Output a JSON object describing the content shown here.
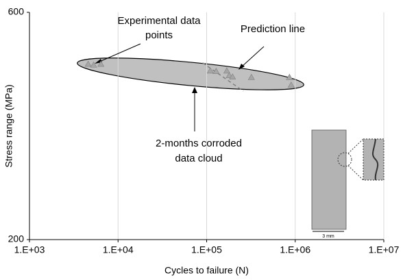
{
  "chart_data": {
    "type": "scatter",
    "x_label": "Cycles to failure (N)",
    "y_label": "Stress range (MPa)",
    "xscale": "log",
    "yscale": "log",
    "xlim": [
      1000,
      10000000
    ],
    "ylim": [
      200,
      600
    ],
    "xticks": [
      {
        "value": 1000,
        "label": "1.E+03"
      },
      {
        "value": 10000,
        "label": "1.E+04"
      },
      {
        "value": 100000,
        "label": "1.E+05"
      },
      {
        "value": 1000000,
        "label": "1.E+06"
      },
      {
        "value": 10000000,
        "label": "1.E+07"
      }
    ],
    "yticks": [
      200,
      600
    ],
    "grid": true,
    "series": [
      {
        "color": "#a6a6a6",
        "x": [
          4600,
          5300,
          6400,
          110000,
          128000,
          169000,
          180000,
          196000,
          320000,
          860000,
          900000
        ],
        "values": [
          468,
          466,
          468,
          453,
          452,
          453,
          443,
          440,
          439,
          439,
          423
        ]
      }
    ],
    "prediction": {
      "color": "#7f7f7f",
      "x": [
        90000,
        260000
      ],
      "values": [
        470,
        410
      ]
    },
    "annotations": {
      "experimental": [
        "Experimental data",
        "points"
      ],
      "prediction": "Prediction line",
      "cloud": [
        "2-months corroded",
        "data cloud"
      ],
      "scale": "3 mm"
    }
  }
}
